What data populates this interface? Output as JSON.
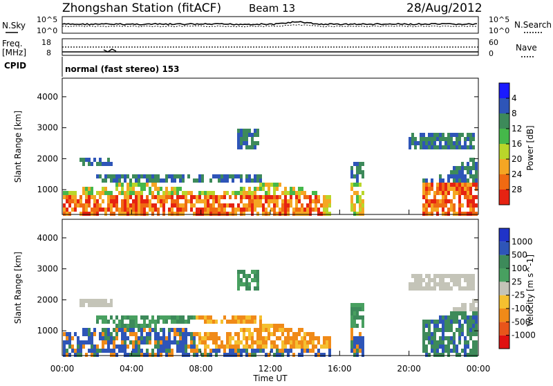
{
  "header": {
    "station": "Zhongshan Station (fitACF)",
    "beam": "Beam 13",
    "date": "28/Aug/2012"
  },
  "status_panels": {
    "nsky_label": "N.Sky",
    "nsky_ticks": [
      "10^5",
      "10^0"
    ],
    "nsearch_label": "N.Search",
    "nsearch_ticks": [
      "10^5",
      "10^0"
    ],
    "freq_label": "Freq.",
    "freq_unit": "[MHz]",
    "freq_ticks": [
      "18",
      "8"
    ],
    "nave_label": "Nave",
    "nave_ticks": [
      "60",
      "0"
    ],
    "cpid_label": "CPID",
    "cpid_value": "normal (fast stereo) 153"
  },
  "chart_data": [
    {
      "type": "heatmap",
      "name": "power",
      "ylabel": "Slant Range [km]",
      "xlabel": "Time UT",
      "y_ticks": [
        "1000",
        "2000",
        "3000",
        "4000"
      ],
      "x_ticks": [
        "00:00",
        "04:00",
        "08:00",
        "12:00",
        "16:00",
        "20:00",
        "00:00"
      ],
      "ylim": [
        200,
        4600
      ],
      "colorbar_label": "Power [dB]",
      "colorbar_ticks": [
        "4",
        "8",
        "12",
        "16",
        "20",
        "24",
        "28"
      ],
      "colorbar_colors": [
        "#1a1aff",
        "#2e55b8",
        "#3d8a5a",
        "#45b84a",
        "#b9d62a",
        "#f5a623",
        "#f06a12",
        "#e62312"
      ]
    },
    {
      "type": "heatmap",
      "name": "velocity",
      "ylabel": "Slant Range [km]",
      "xlabel": "Time UT",
      "y_ticks": [
        "1000",
        "2000",
        "3000",
        "4000"
      ],
      "x_ticks": [
        "00:00",
        "04:00",
        "08:00",
        "12:00",
        "16:00",
        "20:00",
        "00:00"
      ],
      "ylim": [
        200,
        4600
      ],
      "colorbar_label": "Velocity [m s^-1]",
      "colorbar_ticks": [
        "1000",
        "500",
        "100",
        "25",
        "-25",
        "-100",
        "-500",
        "-1000"
      ],
      "colorbar_colors": [
        "#2033c8",
        "#2e55b8",
        "#3d8a5a",
        "#48a060",
        "#c4c4b8",
        "#f5c030",
        "#f08a18",
        "#e8551a",
        "#e01010"
      ]
    }
  ]
}
